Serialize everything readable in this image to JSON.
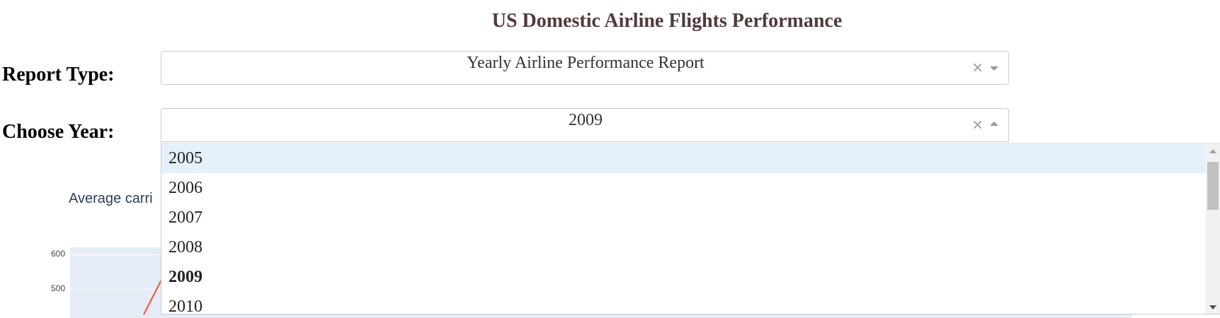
{
  "header": {
    "title": "US Domestic Airline Flights Performance"
  },
  "report_type": {
    "label": "Report Type:",
    "value": "Yearly Airline Performance Report",
    "clear_symbol": "×"
  },
  "year": {
    "label": "Choose Year:",
    "value": "2009",
    "clear_symbol": "×",
    "options": [
      "2005",
      "2006",
      "2007",
      "2008",
      "2009",
      "2010"
    ],
    "focused_option": "2005",
    "selected_option": "2009"
  },
  "chart": {
    "title_visible": "Average carri",
    "y_ticks": [
      "600",
      "500"
    ]
  },
  "colors": {
    "title": "#503A3A",
    "plot_bg": "#E5ECF6",
    "trace": "#EF553B",
    "option_focus": "#E4F1FC"
  },
  "icons": {
    "clear": "close-icon",
    "report_arrow": "chevron-down-icon",
    "year_arrow": "chevron-up-icon"
  }
}
